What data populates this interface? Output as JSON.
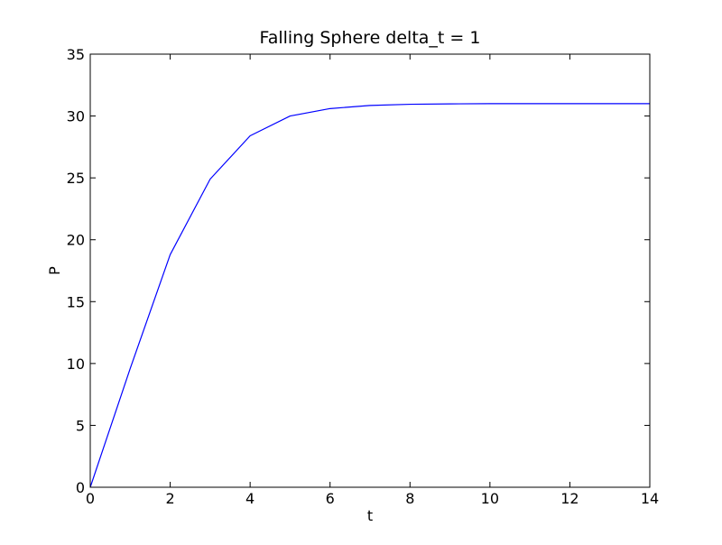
{
  "chart_data": {
    "type": "line",
    "title": "Falling Sphere delta_t = 1",
    "xlabel": "t",
    "ylabel": "P",
    "xlim": [
      0,
      14
    ],
    "ylim": [
      0,
      35
    ],
    "x_ticks": [
      0,
      2,
      4,
      6,
      8,
      10,
      12,
      14
    ],
    "y_ticks": [
      0,
      5,
      10,
      15,
      20,
      25,
      30,
      35
    ],
    "grid": false,
    "legend": "none",
    "series": [
      {
        "color": "#0000ff",
        "x": [
          0,
          1,
          2,
          3,
          4,
          5,
          6,
          7,
          8,
          9,
          10,
          11,
          12,
          13,
          14
        ],
        "y": [
          0,
          9.6,
          18.8,
          24.9,
          28.4,
          30.0,
          30.6,
          30.85,
          30.95,
          30.98,
          31.0,
          31.0,
          31.0,
          31.0,
          31.0
        ]
      }
    ]
  }
}
